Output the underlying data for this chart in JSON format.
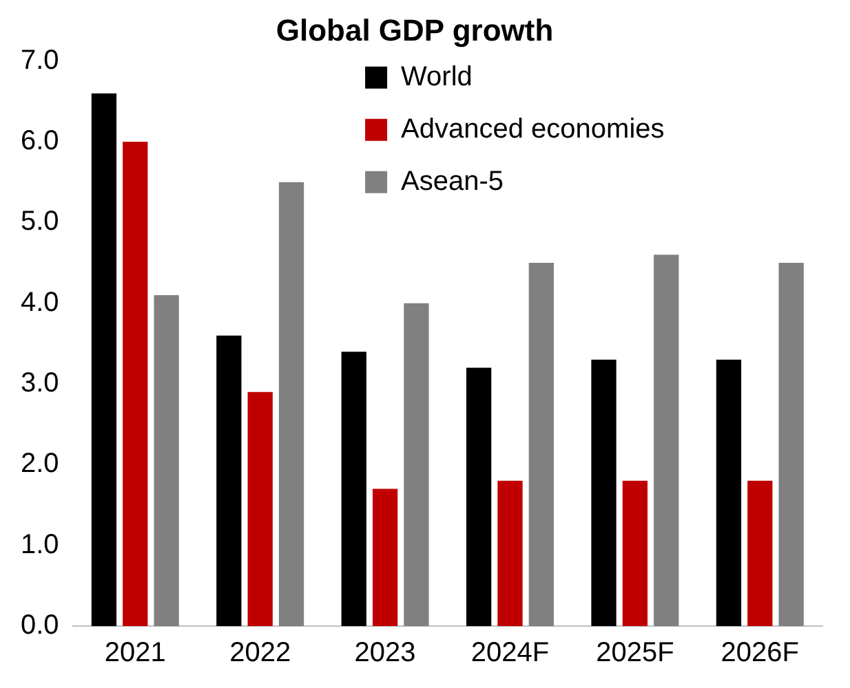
{
  "chart_data": {
    "type": "bar",
    "title": "Global GDP growth",
    "categories": [
      "2021",
      "2022",
      "2023",
      "2024F",
      "2025F",
      "2026F"
    ],
    "series": [
      {
        "name": "World",
        "color": "#000000",
        "values": [
          6.6,
          3.6,
          3.4,
          3.2,
          3.3,
          3.3
        ]
      },
      {
        "name": "Advanced economies",
        "color": "#c00000",
        "values": [
          6.0,
          2.9,
          1.7,
          1.8,
          1.8,
          1.8
        ]
      },
      {
        "name": "Asean-5",
        "color": "#808080",
        "values": [
          4.1,
          5.5,
          4.0,
          4.5,
          4.6,
          4.5
        ]
      }
    ],
    "ylim": [
      0,
      7
    ],
    "yticks": [
      {
        "value": 0,
        "label": "0.0"
      },
      {
        "value": 1,
        "label": "1.0"
      },
      {
        "value": 2,
        "label": "2.0"
      },
      {
        "value": 3,
        "label": "3.0"
      },
      {
        "value": 4,
        "label": "4.0"
      },
      {
        "value": 5,
        "label": "5.0"
      },
      {
        "value": 6,
        "label": "6.0"
      },
      {
        "value": 7,
        "label": "7.0"
      }
    ],
    "grid": false,
    "legend": "top right"
  }
}
